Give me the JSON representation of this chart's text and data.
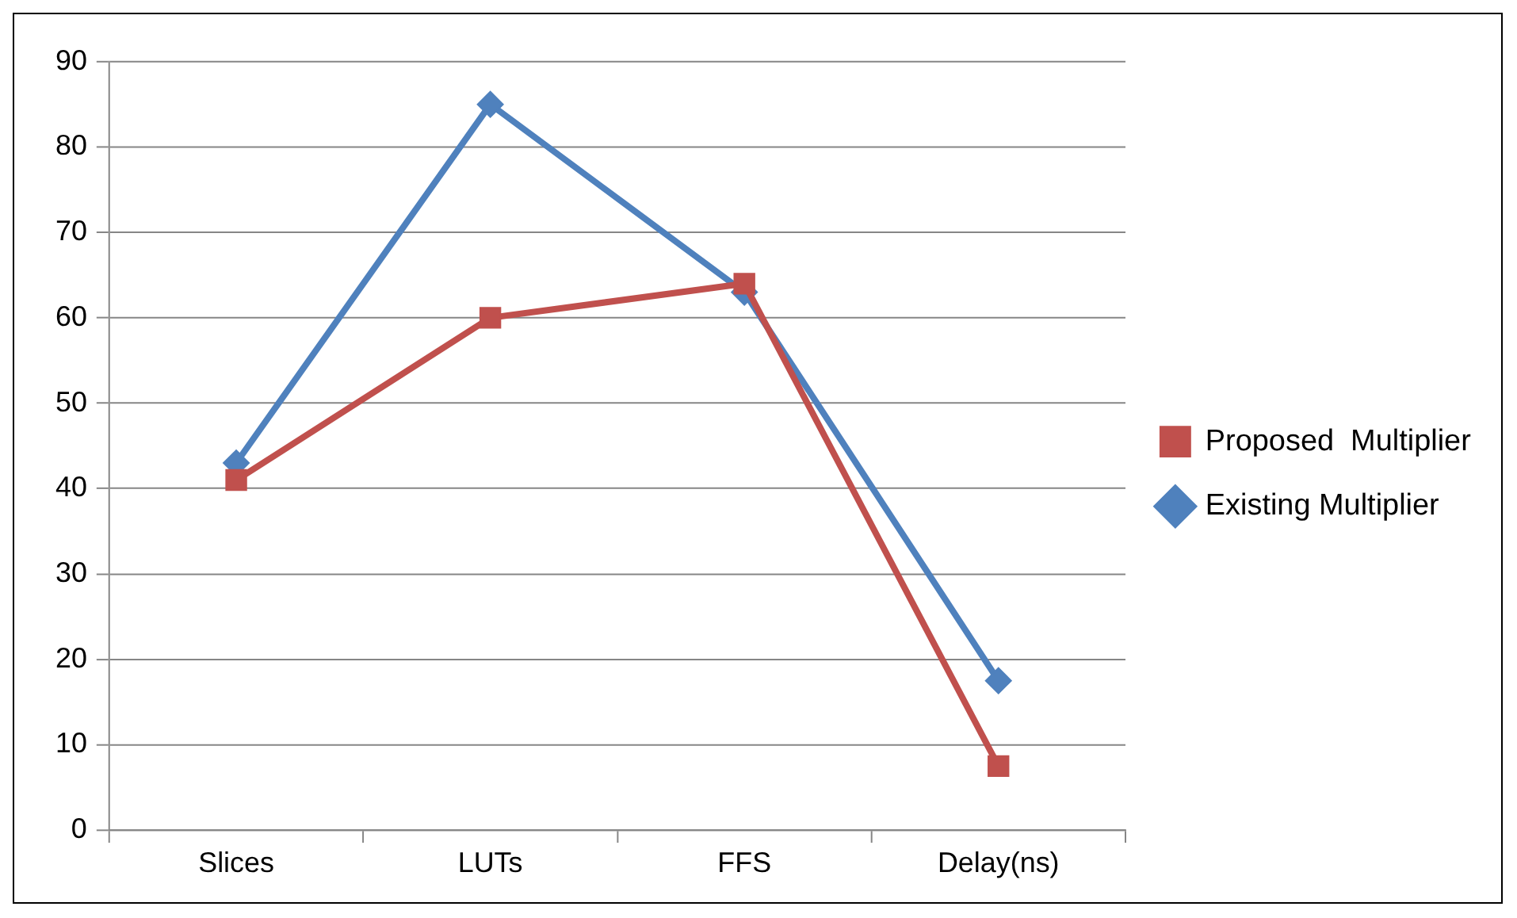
{
  "chart_data": {
    "type": "line",
    "categories": [
      "Slices",
      "LUTs",
      "FFS",
      "Delay(ns)"
    ],
    "series": [
      {
        "name": "Existing Multiplier",
        "color": "#4f81bd",
        "marker": "diamond",
        "values": [
          43,
          85,
          63,
          17.5
        ]
      },
      {
        "name": "Proposed  Multiplier",
        "color": "#c0504d",
        "marker": "square",
        "values": [
          41,
          60,
          64,
          7.5
        ]
      }
    ],
    "ylim": [
      0,
      90
    ],
    "yticks": [
      0,
      10,
      20,
      30,
      40,
      50,
      60,
      70,
      80,
      90
    ],
    "grid": "y",
    "legend": "right",
    "line_style": "solid"
  }
}
